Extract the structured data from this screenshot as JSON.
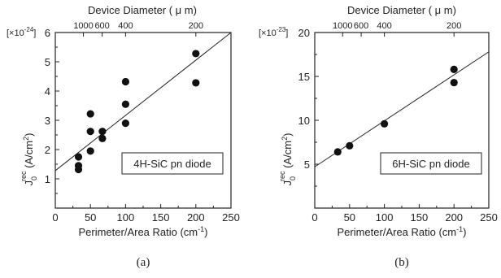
{
  "chart_data": [
    {
      "type": "scatter",
      "panel": "(a)",
      "legend": "4H-SiC pn diode",
      "xlabel": "Perimeter/Area  Ratio (cm",
      "xlabel_sup": "-1",
      "xlabel_close": ")",
      "ylabel_main": "J",
      "ylabel_sub": "0",
      "ylabel_sup": "rec",
      "ylabel_units": " (A/cm",
      "ylabel_units_sup": "2",
      "ylabel_units_close": ")",
      "multiplier": "[×10",
      "multiplier_sup": "-24",
      "multiplier_close": "]",
      "top_axis_label": "Device Diameter ( μ m)",
      "top_ticks": [
        {
          "label": "1000",
          "at": 40
        },
        {
          "label": "600",
          "at": 66.7
        },
        {
          "label": "400",
          "at": 100
        },
        {
          "label": "200",
          "at": 200
        }
      ],
      "xlim": [
        0,
        250
      ],
      "ylim": [
        0,
        6
      ],
      "xticks": [
        0,
        50,
        100,
        150,
        200,
        250
      ],
      "yticks": [
        1,
        2,
        3,
        4,
        5,
        6
      ],
      "points": [
        {
          "x": 33,
          "y": 1.75
        },
        {
          "x": 33,
          "y": 1.45
        },
        {
          "x": 33,
          "y": 1.32
        },
        {
          "x": 50,
          "y": 3.22
        },
        {
          "x": 50,
          "y": 2.62
        },
        {
          "x": 50,
          "y": 1.95
        },
        {
          "x": 67,
          "y": 2.62
        },
        {
          "x": 67,
          "y": 2.38
        },
        {
          "x": 100,
          "y": 4.32
        },
        {
          "x": 100,
          "y": 3.55
        },
        {
          "x": 100,
          "y": 2.9
        },
        {
          "x": 200,
          "y": 5.28
        },
        {
          "x": 200,
          "y": 4.28
        }
      ],
      "fit_line": {
        "x": [
          0,
          250
        ],
        "y": [
          1.28,
          6.0
        ]
      }
    },
    {
      "type": "scatter",
      "panel": "(b)",
      "legend": "6H-SiC pn diode",
      "xlabel": "Perimeter/Area  Ratio (cm",
      "xlabel_sup": "-1",
      "xlabel_close": ")",
      "ylabel_main": "J",
      "ylabel_sub": "0",
      "ylabel_sup": "rec",
      "ylabel_units": " (A/cm",
      "ylabel_units_sup": "2",
      "ylabel_units_close": ")",
      "multiplier": "[×10",
      "multiplier_sup": "-23",
      "multiplier_close": "]",
      "top_axis_label": "Device Diameter ( μ m)",
      "top_ticks": [
        {
          "label": "1000",
          "at": 40
        },
        {
          "label": "600",
          "at": 66.7
        },
        {
          "label": "400",
          "at": 100
        },
        {
          "label": "200",
          "at": 200
        }
      ],
      "xlim": [
        0,
        250
      ],
      "ylim": [
        0,
        20
      ],
      "xticks": [
        0,
        50,
        100,
        150,
        200,
        250
      ],
      "yticks": [
        5,
        10,
        15,
        20
      ],
      "points": [
        {
          "x": 33,
          "y": 6.4
        },
        {
          "x": 50,
          "y": 7.1
        },
        {
          "x": 100,
          "y": 9.6
        },
        {
          "x": 200,
          "y": 15.8
        },
        {
          "x": 200,
          "y": 14.3
        }
      ],
      "fit_line": {
        "x": [
          0,
          250
        ],
        "y": [
          4.7,
          17.8
        ]
      }
    }
  ]
}
